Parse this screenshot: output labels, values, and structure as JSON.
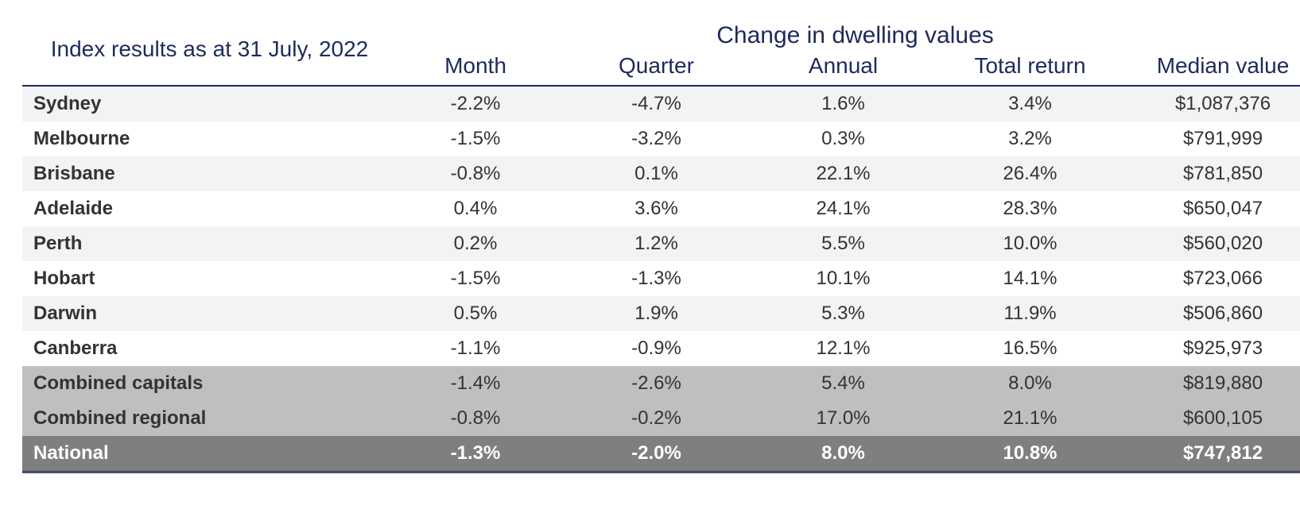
{
  "table": {
    "type": "table",
    "title": "Index results as at 31 July, 2022",
    "super_header": "Change in dwelling values",
    "columns": [
      "Month",
      "Quarter",
      "Annual",
      "Total return",
      "Median value"
    ],
    "colors": {
      "heading_text": "#1e2a5a",
      "body_text": "#333333",
      "stripe_light": "#f2f3f5",
      "stripe_white": "#ffffff",
      "stripe_med": "#bfbfbf",
      "stripe_dark": "#7f7f7f",
      "dark_row_text": "#ffffff",
      "rule": "#1e2a5a"
    },
    "fonts": {
      "title_size_pt": 24,
      "header_size_pt": 22,
      "body_size_pt": 18
    },
    "column_align": [
      "left",
      "center",
      "center",
      "center",
      "center",
      "center"
    ],
    "rows": [
      {
        "label": "Sydney",
        "month": "-2.2%",
        "quarter": "-4.7%",
        "annual": "1.6%",
        "total": "3.4%",
        "median": "$1,087,376",
        "style": "stripe-light"
      },
      {
        "label": "Melbourne",
        "month": "-1.5%",
        "quarter": "-3.2%",
        "annual": "0.3%",
        "total": "3.2%",
        "median": "$791,999",
        "style": "stripe-white"
      },
      {
        "label": "Brisbane",
        "month": "-0.8%",
        "quarter": "0.1%",
        "annual": "22.1%",
        "total": "26.4%",
        "median": "$781,850",
        "style": "stripe-light"
      },
      {
        "label": "Adelaide",
        "month": "0.4%",
        "quarter": "3.6%",
        "annual": "24.1%",
        "total": "28.3%",
        "median": "$650,047",
        "style": "stripe-white"
      },
      {
        "label": "Perth",
        "month": "0.2%",
        "quarter": "1.2%",
        "annual": "5.5%",
        "total": "10.0%",
        "median": "$560,020",
        "style": "stripe-light"
      },
      {
        "label": "Hobart",
        "month": "-1.5%",
        "quarter": "-1.3%",
        "annual": "10.1%",
        "total": "14.1%",
        "median": "$723,066",
        "style": "stripe-white"
      },
      {
        "label": "Darwin",
        "month": "0.5%",
        "quarter": "1.9%",
        "annual": "5.3%",
        "total": "11.9%",
        "median": "$506,860",
        "style": "stripe-light"
      },
      {
        "label": "Canberra",
        "month": "-1.1%",
        "quarter": "-0.9%",
        "annual": "12.1%",
        "total": "16.5%",
        "median": "$925,973",
        "style": "stripe-white"
      },
      {
        "label": "Combined capitals",
        "month": "-1.4%",
        "quarter": "-2.6%",
        "annual": "5.4%",
        "total": "8.0%",
        "median": "$819,880",
        "style": "stripe-med"
      },
      {
        "label": "Combined regional",
        "month": "-0.8%",
        "quarter": "-0.2%",
        "annual": "17.0%",
        "total": "21.1%",
        "median": "$600,105",
        "style": "stripe-med"
      },
      {
        "label": "National",
        "month": "-1.3%",
        "quarter": "-2.0%",
        "annual": "8.0%",
        "total": "10.8%",
        "median": "$747,812",
        "style": "stripe-dark"
      }
    ]
  }
}
